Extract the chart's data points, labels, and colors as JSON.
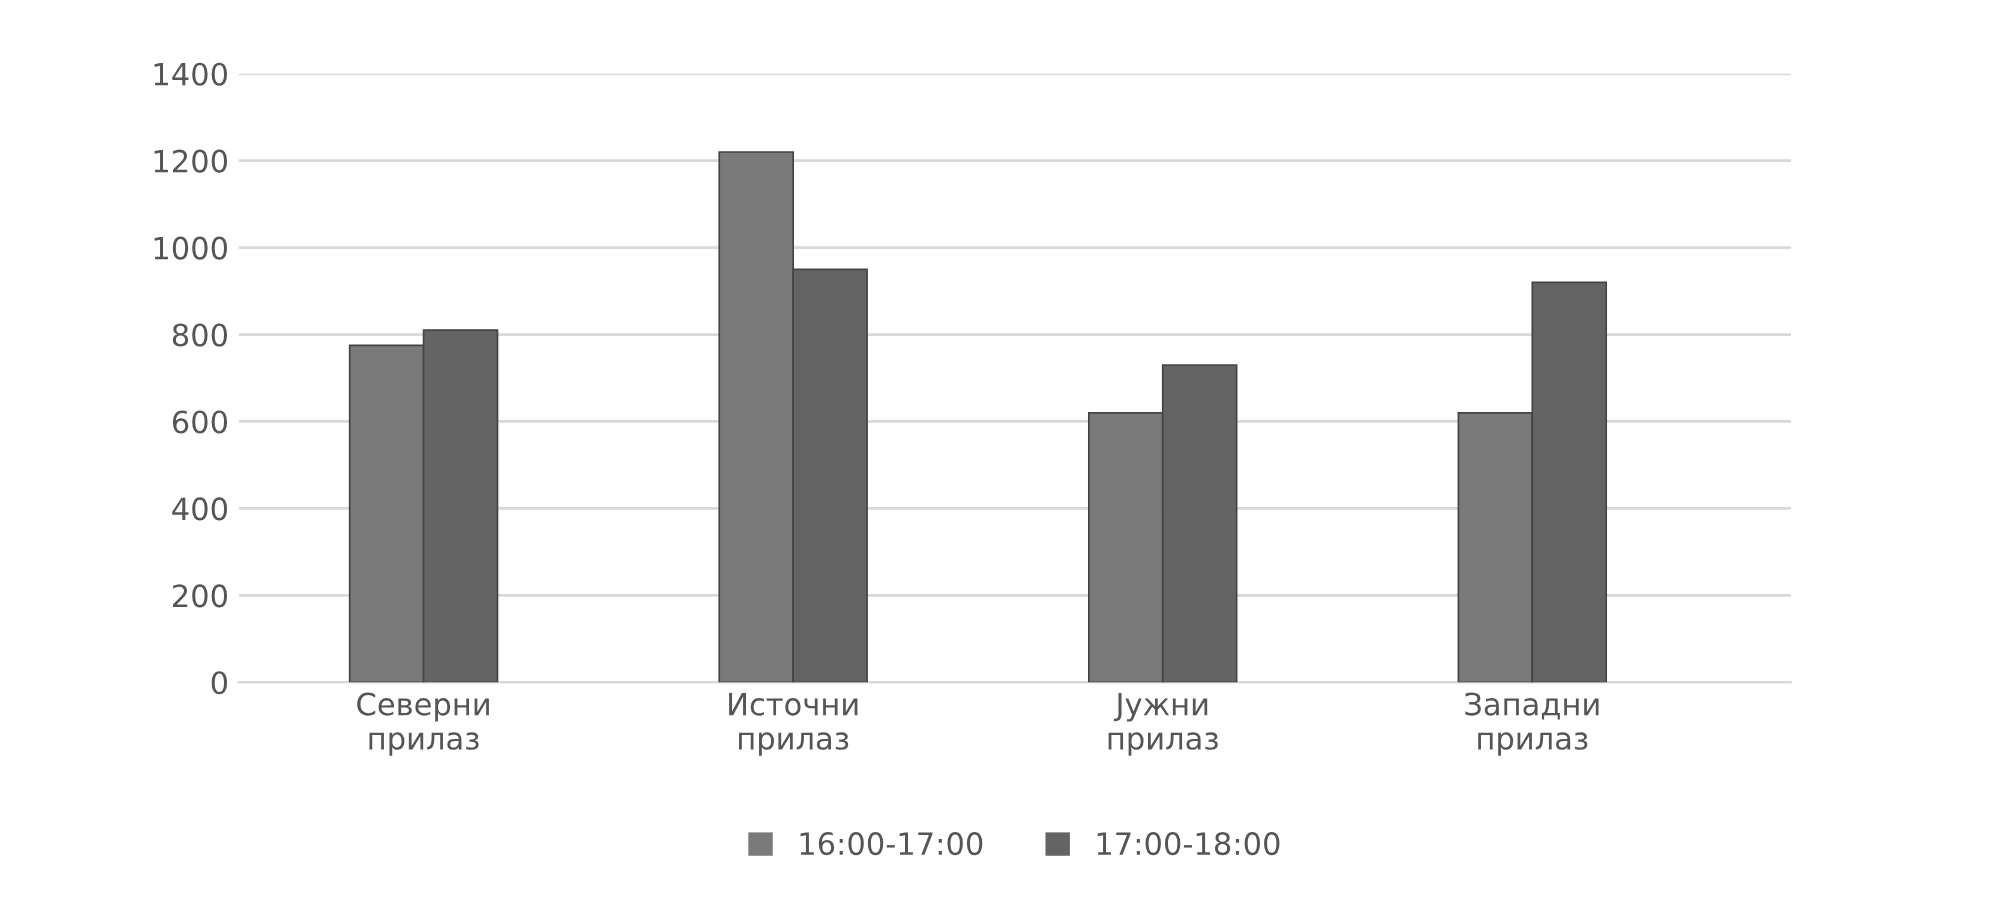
{
  "chart_data": {
    "type": "bar",
    "categories": [
      "Северни\nприлаз",
      "Источни\nприлаз",
      "Јужни\nприлаз",
      "Западни\nприлаз"
    ],
    "series": [
      {
        "name": "16:00-17:00",
        "color": "#7a7a7a",
        "values": [
          775,
          1220,
          620,
          620
        ]
      },
      {
        "name": "17:00-18:00",
        "color": "#646464",
        "values": [
          810,
          950,
          730,
          920
        ]
      }
    ],
    "ylim": [
      0,
      1400
    ],
    "yticks": [
      0,
      200,
      400,
      600,
      800,
      1000,
      1200,
      1400
    ],
    "grid": "y",
    "legend": "bottom"
  }
}
